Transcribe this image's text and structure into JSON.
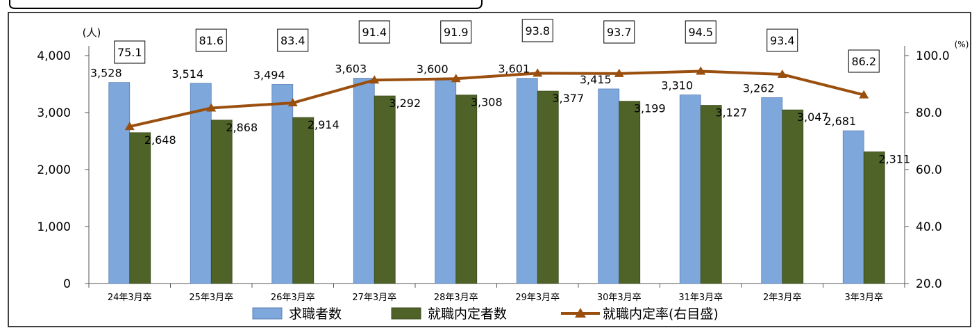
{
  "chart_data": {
    "type": "bar",
    "categories": [
      "24年3月卒",
      "25年3月卒",
      "26年3月卒",
      "27年3月卒",
      "28年3月卒",
      "29年3月卒",
      "30年3月卒",
      "31年3月卒",
      "2年3月卒",
      "3年3月卒"
    ],
    "series": [
      {
        "name": "求職者数",
        "type": "bar",
        "axis": "left",
        "color": "#7ea7dc",
        "values": [
          3528,
          3514,
          3494,
          3603,
          3600,
          3601,
          3415,
          3310,
          3262,
          2681
        ],
        "labels": [
          "3,528",
          "3,514",
          "3,494",
          "3,603",
          "3,600",
          "3,601",
          "3,415",
          "3,310",
          "3,262",
          "2,681"
        ]
      },
      {
        "name": "就職内定者数",
        "type": "bar",
        "axis": "left",
        "color": "#4f6228",
        "values": [
          2648,
          2868,
          2914,
          3292,
          3308,
          3377,
          3199,
          3127,
          3047,
          2311
        ],
        "labels": [
          "2,648",
          "2,868",
          "2,914",
          "3,292",
          "3,308",
          "3,377",
          "3,199",
          "3,127",
          "3,047",
          "2,311"
        ]
      },
      {
        "name": "就職内定率(右目盛)",
        "type": "line",
        "axis": "right",
        "color": "#9a4f0e",
        "values": [
          75.1,
          81.6,
          83.4,
          91.4,
          91.9,
          93.8,
          93.7,
          94.5,
          93.4,
          86.2
        ],
        "labels": [
          "75.1",
          "81.6",
          "83.4",
          "91.4",
          "91.9",
          "93.8",
          "93.7",
          "94.5",
          "93.4",
          "86.2"
        ]
      }
    ],
    "y_left": {
      "unit": "(人)",
      "ylim": [
        0,
        4000
      ],
      "ticks": [
        0,
        1000,
        2000,
        3000,
        4000
      ],
      "tick_labels": [
        "0",
        "1,000",
        "2,000",
        "3,000",
        "4,000"
      ]
    },
    "y_right": {
      "unit": "(%)",
      "ylim": [
        20,
        100
      ],
      "ticks": [
        20,
        40,
        60,
        80,
        100
      ],
      "tick_labels": [
        "20.0",
        "40.0",
        "60.0",
        "80.0",
        "100.0"
      ]
    },
    "grid": false,
    "legend_position": "bottom"
  }
}
